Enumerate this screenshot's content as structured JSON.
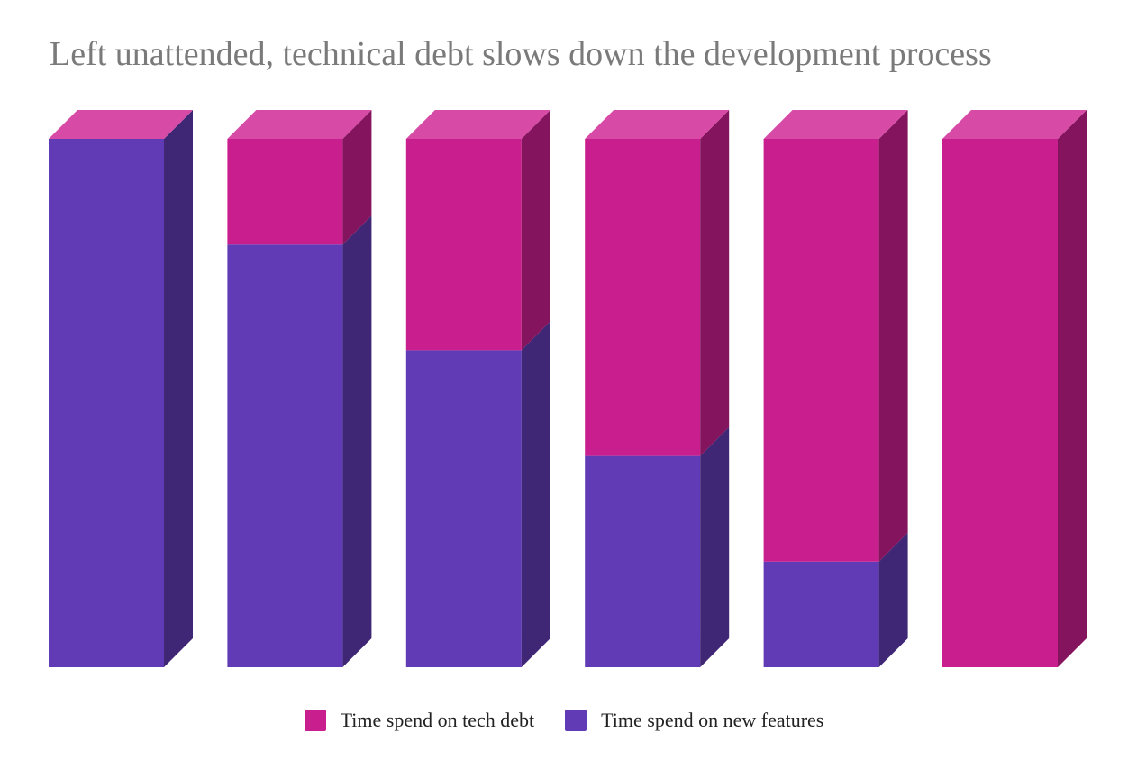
{
  "chart_data": {
    "type": "bar",
    "stacked": true,
    "title": "Left unattended, technical debt slows down the development process",
    "xlabel": "",
    "ylabel": "",
    "ylim": [
      0,
      100
    ],
    "grid": false,
    "legend_position": "bottom",
    "categories": [
      "",
      "",
      "",
      "",
      "",
      ""
    ],
    "series": [
      {
        "name": "Time spend on new features",
        "values": [
          100,
          80,
          60,
          40,
          20,
          0
        ],
        "color": "#613bb5"
      },
      {
        "name": "Time spend on tech debt",
        "values": [
          0,
          20,
          40,
          60,
          80,
          100
        ],
        "color": "#c91f8e"
      }
    ]
  },
  "colors": {
    "features_front": "#613bb5",
    "features_side": "#3f2776",
    "debt_front": "#c91f8e",
    "debt_side": "#85145f",
    "top_face": "#d74aa6",
    "title": "#7a7a7a"
  },
  "legend": [
    {
      "label": "Time spend on tech debt",
      "color": "#c91f8e"
    },
    {
      "label": "Time spend on new features",
      "color": "#613bb5"
    }
  ]
}
